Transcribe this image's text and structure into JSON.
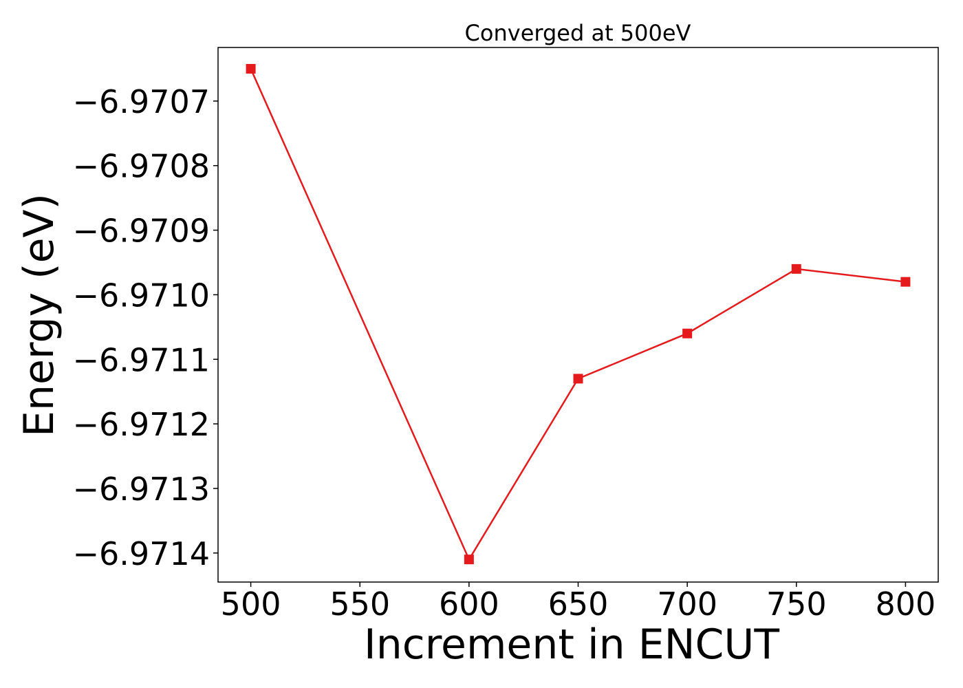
{
  "chart_data": {
    "type": "line",
    "title": "Converged at 500eV",
    "xlabel": "Increment in ENCUT",
    "ylabel": "Energy (eV)",
    "x": [
      500,
      600,
      650,
      700,
      750,
      800
    ],
    "series": [
      {
        "values": [
          -6.97065,
          -6.97141,
          -6.97113,
          -6.97106,
          -6.97096,
          -6.97098
        ],
        "color": "#e41a1c",
        "marker": "square"
      }
    ],
    "xlim": [
      485,
      815
    ],
    "ylim": [
      -6.971445,
      -6.970617
    ],
    "xticks": [
      500,
      550,
      600,
      650,
      700,
      750,
      800
    ],
    "xtick_labels": [
      "500",
      "550",
      "600",
      "650",
      "700",
      "750",
      "800"
    ],
    "yticks": [
      -6.9714,
      -6.9713,
      -6.9712,
      -6.9711,
      -6.971,
      -6.9709,
      -6.9708,
      -6.9707
    ],
    "ytick_labels": [
      "−6.9714",
      "−6.9713",
      "−6.9712",
      "−6.9711",
      "−6.9710",
      "−6.9709",
      "−6.9708",
      "−6.9707"
    ],
    "grid": false,
    "legend": "none"
  }
}
